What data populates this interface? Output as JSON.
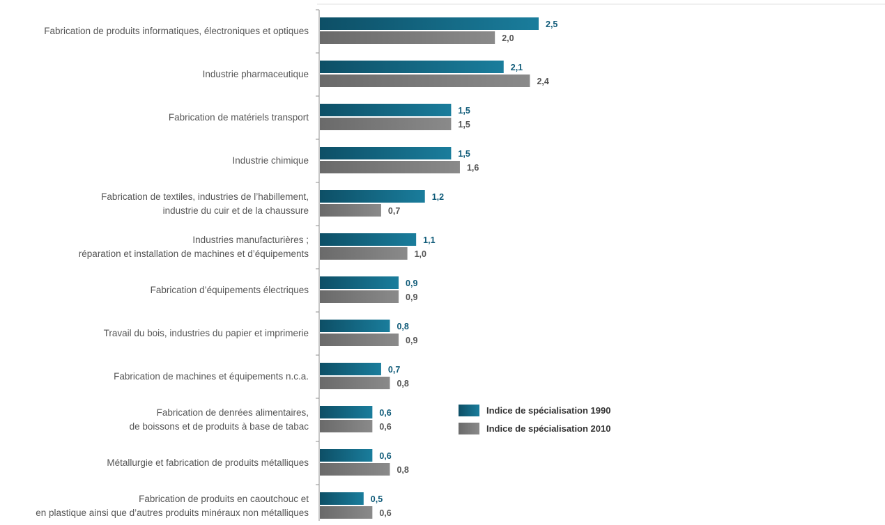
{
  "chart_data": {
    "type": "bar",
    "orientation": "horizontal",
    "categories": [
      [
        "Fabrication de produits informatiques, électroniques et optiques"
      ],
      [
        "Industrie pharmaceutique"
      ],
      [
        "Fabrication de matériels transport"
      ],
      [
        "Industrie chimique"
      ],
      [
        "Fabrication de textiles, industries de l’habillement,",
        "industrie du cuir et de la chaussure"
      ],
      [
        "Industries manufacturières ;",
        "réparation et installation de machines et d’équipements"
      ],
      [
        "Fabrication d’équipements électriques"
      ],
      [
        "Travail du bois, industries du papier et imprimerie"
      ],
      [
        "Fabrication de machines et équipements n.c.a."
      ],
      [
        "Fabrication de denrées alimentaires,",
        "de boissons et de produits à base de tabac"
      ],
      [
        "Métallurgie et fabrication de produits métalliques"
      ],
      [
        "Fabrication de produits en caoutchouc et",
        "en plastique ainsi que d’autres produits minéraux non métalliques"
      ]
    ],
    "series": [
      {
        "name": "Indice de spécialisation 1990",
        "values": [
          2.5,
          2.1,
          1.5,
          1.5,
          1.2,
          1.1,
          0.9,
          0.8,
          0.7,
          0.6,
          0.6,
          0.5
        ],
        "labels": [
          "2,5",
          "2,1",
          "1,5",
          "1,5",
          "1,2",
          "1,1",
          "0,9",
          "0,8",
          "0,7",
          "0,6",
          "0,6",
          "0,5"
        ],
        "color": "#1a7d9c",
        "color_dark": "#0d4f66",
        "label_color": "#0e5a78"
      },
      {
        "name": "Indice de spécialisation 2010",
        "values": [
          2.0,
          2.4,
          1.5,
          1.6,
          0.7,
          1.0,
          0.9,
          0.9,
          0.8,
          0.6,
          0.8,
          0.6
        ],
        "labels": [
          "2,0",
          "2,4",
          "1,5",
          "1,6",
          "0,7",
          "1,0",
          "0,9",
          "0,9",
          "0,8",
          "0,6",
          "0,8",
          "0,6"
        ],
        "color": "#8a8a8a",
        "color_dark": "#6a6a6a",
        "label_color": "#555555"
      }
    ],
    "xlim": [
      0,
      2.5
    ],
    "grid": false,
    "legend_position": "right-bottom"
  }
}
